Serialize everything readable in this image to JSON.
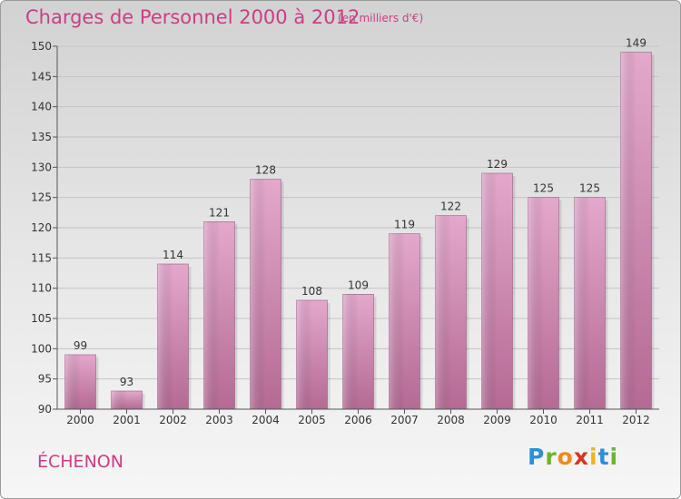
{
  "title": "Charges de Personnel 2000 à 2012",
  "subtitle": "(en milliers d'€)",
  "commune": "ÉCHENON",
  "logo": {
    "letters": [
      "P",
      "r",
      "o",
      "x",
      "i",
      "t",
      "i"
    ],
    "colors": [
      "#2d8fd5",
      "#6bb52c",
      "#f08a1c",
      "#d9341f",
      "#f0b41c",
      "#2d8fd5",
      "#6bb52c"
    ]
  },
  "chart_data": {
    "type": "bar",
    "categories": [
      "2000",
      "2001",
      "2002",
      "2003",
      "2004",
      "2005",
      "2006",
      "2007",
      "2008",
      "2009",
      "2010",
      "2011",
      "2012"
    ],
    "values": [
      99,
      93,
      114,
      121,
      128,
      108,
      109,
      119,
      122,
      129,
      125,
      125,
      149
    ],
    "ylim": [
      90,
      150
    ],
    "yticks": [
      90,
      95,
      100,
      105,
      110,
      115,
      120,
      125,
      130,
      135,
      140,
      145,
      150
    ],
    "bar_color": "#e0a0c6",
    "grid": true
  }
}
